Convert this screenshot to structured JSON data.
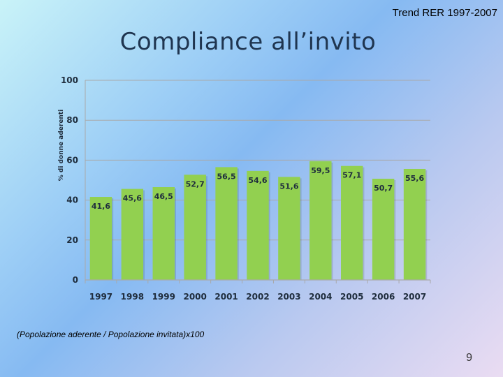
{
  "header": {
    "top_title": "Trend RER 1997-2007"
  },
  "slide": {
    "title": "Compliance all’invito",
    "formula": "(Popolazione aderente / Popolazione invitata)x100",
    "page_number": "9"
  },
  "colors": {
    "bar": "#92d050",
    "grid": "#a9a9a9",
    "text": "#1f2d3d"
  },
  "chart_data": {
    "type": "bar",
    "title": "",
    "xlabel": "",
    "ylabel": "% di donne aderenti",
    "ylim": [
      0,
      100
    ],
    "yticks": [
      0,
      20,
      40,
      60,
      80,
      100
    ],
    "grid": true,
    "categories": [
      "1997",
      "1998",
      "1999",
      "2000",
      "2001",
      "2002",
      "2003",
      "2004",
      "2005",
      "2006",
      "2007"
    ],
    "values": [
      41.6,
      45.6,
      46.5,
      52.7,
      56.5,
      54.6,
      51.6,
      59.5,
      57.1,
      50.7,
      55.6
    ],
    "value_labels": [
      "41,6",
      "45,6",
      "46,5",
      "52,7",
      "56,5",
      "54,6",
      "51,6",
      "59,5",
      "57,1",
      "50,7",
      "55,6"
    ]
  }
}
